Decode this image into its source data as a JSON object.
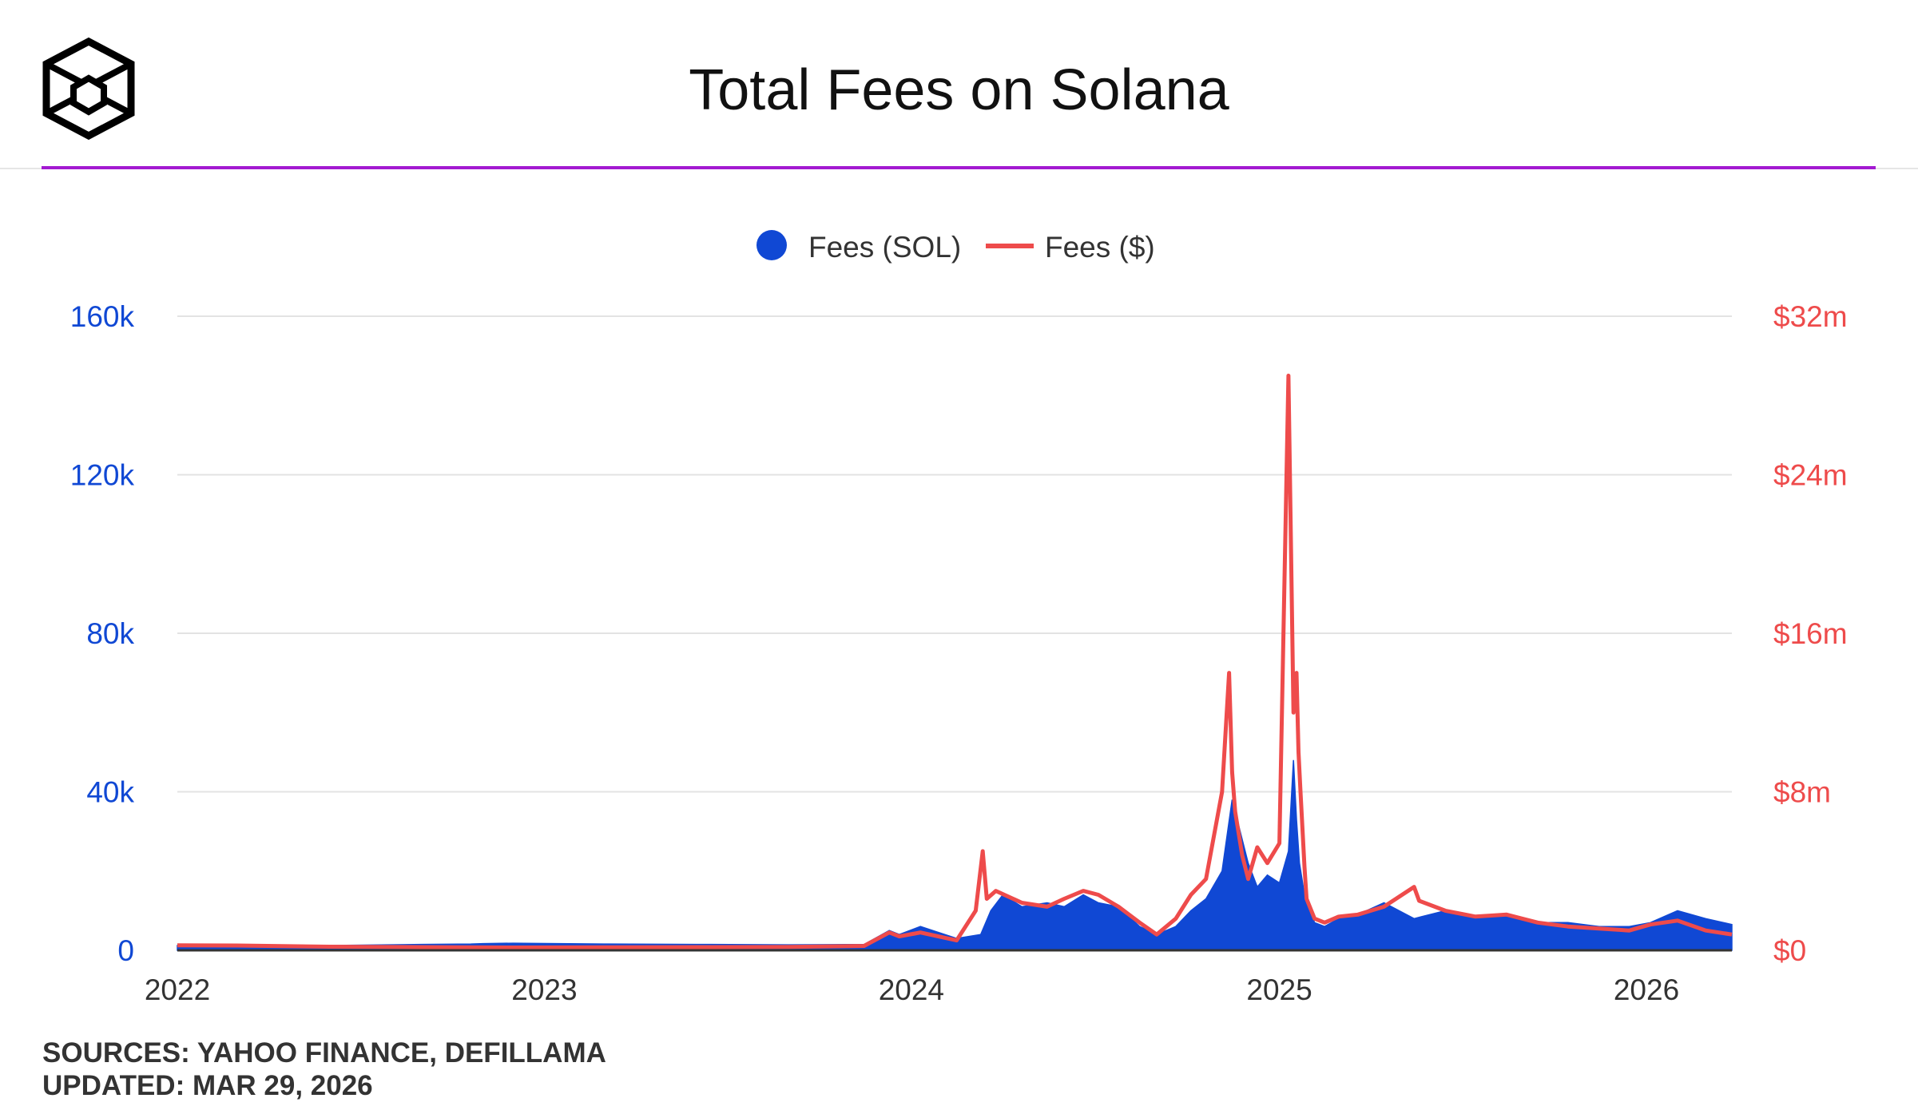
{
  "header": {
    "title": "Total Fees on Solana",
    "logo_icon": "cube-logo-icon"
  },
  "colors": {
    "accent": "#a31ad1",
    "sol_series": "#1048d4",
    "usd_series": "#ee4b4b",
    "left_axis": "#1048d4",
    "right_axis": "#ee4b4b"
  },
  "footer": {
    "sources": "SOURCES: YAHOO FINANCE, DEFILLAMA",
    "updated": "UPDATED: MAR 29, 2026"
  },
  "chart_data": {
    "type": "area",
    "title": "Total Fees on Solana",
    "legend": {
      "placement": "top-center",
      "entries": [
        "Fees (SOL)",
        "Fees ($)"
      ]
    },
    "grid": true,
    "x_axis": {
      "type": "date",
      "range": [
        "2022-01-01",
        "2026-03-27"
      ],
      "ticks": [
        "2022",
        "2023",
        "2024",
        "2025",
        "2026"
      ]
    },
    "y_left": {
      "range": [
        0,
        160000
      ],
      "ticks": [
        "0",
        "40k",
        "80k",
        "120k",
        "160k"
      ]
    },
    "y_right": {
      "range": [
        0,
        32000000
      ],
      "ticks": [
        "$0",
        "$8m",
        "$16m",
        "$24m",
        "$32m"
      ]
    },
    "series": [
      {
        "name": "Fees (SOL)",
        "type": "area",
        "axis": "left",
        "x": [
          "2022-01-01",
          "2022-03-01",
          "2022-06-01",
          "2022-09-01",
          "2022-10-20",
          "2022-11-01",
          "2022-12-01",
          "2023-03-01",
          "2023-06-01",
          "2023-09-01",
          "2023-11-15",
          "2023-12-10",
          "2023-12-20",
          "2024-01-10",
          "2024-02-15",
          "2024-03-10",
          "2024-03-20",
          "2024-04-01",
          "2024-04-20",
          "2024-05-15",
          "2024-06-01",
          "2024-06-20",
          "2024-07-05",
          "2024-07-25",
          "2024-08-15",
          "2024-09-01",
          "2024-09-20",
          "2024-10-05",
          "2024-10-20",
          "2024-11-05",
          "2024-11-15",
          "2024-11-20",
          "2024-12-01",
          "2024-12-10",
          "2024-12-20",
          "2025-01-01",
          "2025-01-10",
          "2025-01-15",
          "2025-01-18",
          "2025-01-21",
          "2025-01-26",
          "2025-02-05",
          "2025-02-15",
          "2025-03-01",
          "2025-03-20",
          "2025-04-15",
          "2025-05-15",
          "2025-06-15",
          "2025-07-15",
          "2025-08-15",
          "2025-09-15",
          "2025-10-15",
          "2025-11-15",
          "2025-12-15",
          "2026-01-05",
          "2026-02-01",
          "2026-03-01",
          "2026-03-27"
        ],
        "values": [
          1200,
          1200,
          1200,
          1500,
          1600,
          1700,
          1800,
          1600,
          1500,
          1400,
          1500,
          5000,
          4000,
          6000,
          3000,
          4000,
          10000,
          14000,
          11000,
          12000,
          11000,
          14000,
          12000,
          11000,
          6000,
          4000,
          6000,
          10000,
          13000,
          20000,
          38000,
          33000,
          22000,
          16000,
          19000,
          17000,
          25000,
          48000,
          33000,
          22000,
          14000,
          7000,
          6000,
          8000,
          9000,
          12000,
          8000,
          10000,
          8000,
          9000,
          7000,
          7000,
          6000,
          6000,
          7000,
          10000,
          8000,
          6500
        ]
      },
      {
        "name": "Fees ($)",
        "type": "line",
        "axis": "right",
        "x": [
          "2022-01-01",
          "2022-03-01",
          "2022-06-01",
          "2022-09-01",
          "2022-12-01",
          "2023-03-01",
          "2023-06-01",
          "2023-09-01",
          "2023-11-15",
          "2023-12-10",
          "2023-12-20",
          "2024-01-10",
          "2024-02-15",
          "2024-03-05",
          "2024-03-12",
          "2024-03-16",
          "2024-03-25",
          "2024-04-20",
          "2024-05-15",
          "2024-06-01",
          "2024-06-20",
          "2024-07-05",
          "2024-07-25",
          "2024-08-15",
          "2024-09-01",
          "2024-09-20",
          "2024-10-05",
          "2024-10-20",
          "2024-11-05",
          "2024-11-12",
          "2024-11-15",
          "2024-11-18",
          "2024-11-25",
          "2024-12-01",
          "2024-12-10",
          "2024-12-20",
          "2025-01-01",
          "2025-01-10",
          "2025-01-15",
          "2025-01-18",
          "2025-01-20",
          "2025-01-22",
          "2025-01-26",
          "2025-01-28",
          "2025-02-05",
          "2025-02-15",
          "2025-03-01",
          "2025-03-20",
          "2025-04-15",
          "2025-05-15",
          "2025-05-20",
          "2025-06-15",
          "2025-07-15",
          "2025-08-15",
          "2025-09-15",
          "2025-10-15",
          "2025-11-15",
          "2025-12-15",
          "2026-01-05",
          "2026-02-01",
          "2026-03-01",
          "2026-03-27"
        ],
        "values": [
          250000,
          240000,
          180000,
          160000,
          140000,
          150000,
          160000,
          170000,
          220000,
          900000,
          700000,
          900000,
          500000,
          2000000,
          5000000,
          2600000,
          3000000,
          2400000,
          2200000,
          2600000,
          3000000,
          2800000,
          2200000,
          1400000,
          800000,
          1600000,
          2800000,
          3600000,
          8000000,
          14000000,
          9000000,
          7000000,
          4800000,
          3600000,
          5200000,
          4400000,
          5400000,
          29000000,
          12000000,
          14000000,
          10000000,
          8000000,
          4200000,
          2600000,
          1600000,
          1400000,
          1700000,
          1800000,
          2200000,
          3200000,
          2500000,
          2000000,
          1700000,
          1800000,
          1400000,
          1200000,
          1100000,
          1000000,
          1300000,
          1500000,
          1000000,
          800000
        ]
      }
    ]
  }
}
